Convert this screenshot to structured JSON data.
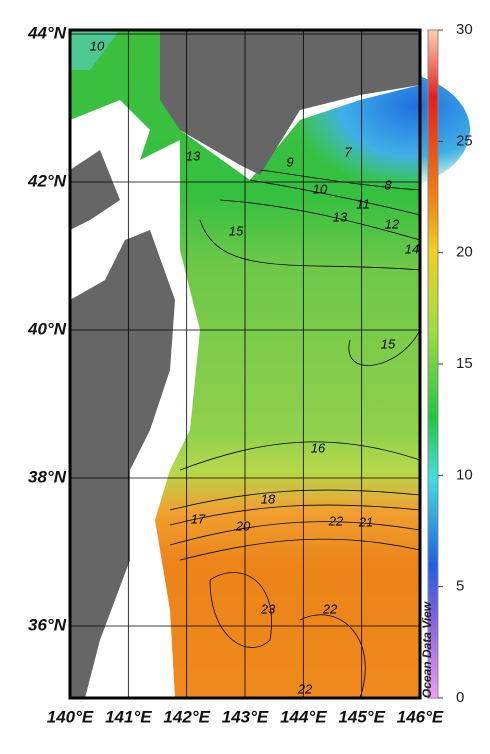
{
  "map": {
    "lon_ticks": [
      {
        "value": 140,
        "label": "140°E"
      },
      {
        "value": 141,
        "label": "141°E"
      },
      {
        "value": 142,
        "label": "142°E"
      },
      {
        "value": 143,
        "label": "143°E"
      },
      {
        "value": 144,
        "label": "144°E"
      },
      {
        "value": 145,
        "label": "145°E"
      },
      {
        "value": 146,
        "label": "146°E"
      }
    ],
    "lat_ticks": [
      {
        "value": 36,
        "label": "36°N"
      },
      {
        "value": 38,
        "label": "38°N"
      },
      {
        "value": 40,
        "label": "40°N"
      },
      {
        "value": 42,
        "label": "42°N"
      },
      {
        "value": 44,
        "label": "44°N"
      }
    ],
    "colorbar_ticks": [
      0,
      5,
      10,
      15,
      20,
      25,
      30
    ],
    "contour_labels": [
      "10",
      "13",
      "9",
      "7",
      "8",
      "10",
      "11",
      "13",
      "12",
      "14",
      "15",
      "15",
      "16",
      "18",
      "17",
      "20",
      "22",
      "21",
      "23",
      "22",
      "22"
    ],
    "credit": "Ocean Data View"
  }
}
